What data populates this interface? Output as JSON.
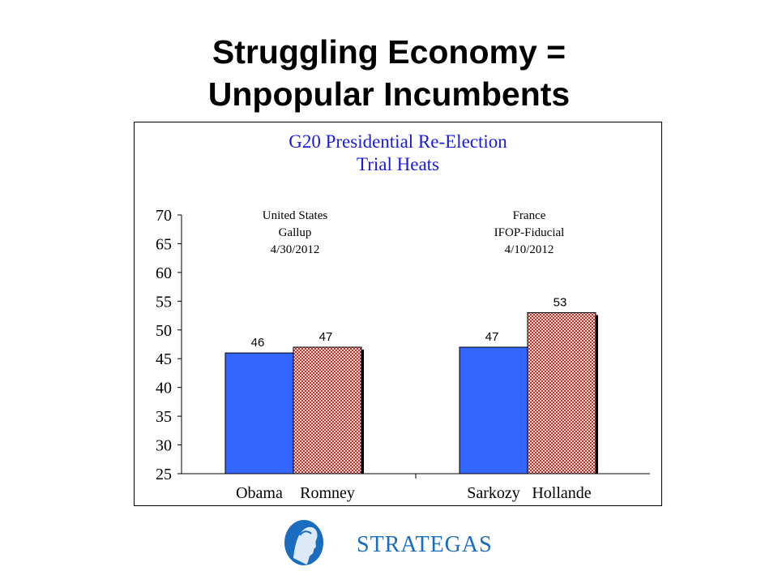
{
  "slide": {
    "title_line1": "Struggling Economy =",
    "title_line2": "Unpopular Incumbents"
  },
  "chart_data": {
    "type": "bar",
    "title_line1": "G20 Presidential Re-Election",
    "title_line2": "Trial Heats",
    "ylim": [
      25,
      70
    ],
    "yticks": [
      25,
      30,
      35,
      40,
      45,
      50,
      55,
      60,
      65,
      70
    ],
    "groups": [
      {
        "annotation": [
          "United States",
          "Gallup",
          "4/30/2012"
        ],
        "bars": [
          {
            "category": "Obama",
            "value": 46,
            "color": "#3366ff",
            "pattern": "solid"
          },
          {
            "category": "Romney",
            "value": 47,
            "color": "#c8241f",
            "pattern": "crosshatch"
          }
        ]
      },
      {
        "annotation": [
          "France",
          "IFOP-Fiducial",
          "4/10/2012"
        ],
        "bars": [
          {
            "category": "Sarkozy",
            "value": 47,
            "color": "#3366ff",
            "pattern": "solid"
          },
          {
            "category": "Hollande",
            "value": 53,
            "color": "#c8241f",
            "pattern": "crosshatch"
          }
        ]
      }
    ],
    "title_color": "#1a1ad8"
  },
  "footer": {
    "brand": "STRATEGAS",
    "brand_color": "#1a6cbf",
    "logo_icon": "profile-head-emblem-icon"
  }
}
